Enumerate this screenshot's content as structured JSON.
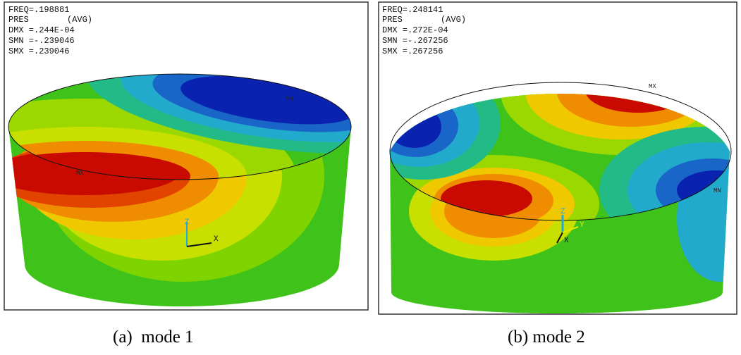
{
  "panels": [
    {
      "freq": "FREQ=.198881",
      "pres": "PRES",
      "avg": "(AVG)",
      "dmx": "DMX =.244E-04",
      "smn": "SMN =-.239046",
      "smx": "SMX =.239046",
      "mn": "MN",
      "mx": "MX",
      "axis_z": "Z",
      "axis_x": "X",
      "caption": "(a)  mode 1"
    },
    {
      "freq": "FREQ=.248141",
      "pres": "PRES",
      "avg": "(AVG)",
      "dmx": "DMX =.272E-04",
      "smn": "SMN =-.267256",
      "smx": "SMX =.267256",
      "mn": "MN",
      "mx": "MX",
      "axis_z": "Z",
      "axis_x": "X",
      "axis_y": "Y",
      "caption": "(b) mode 2"
    }
  ]
}
